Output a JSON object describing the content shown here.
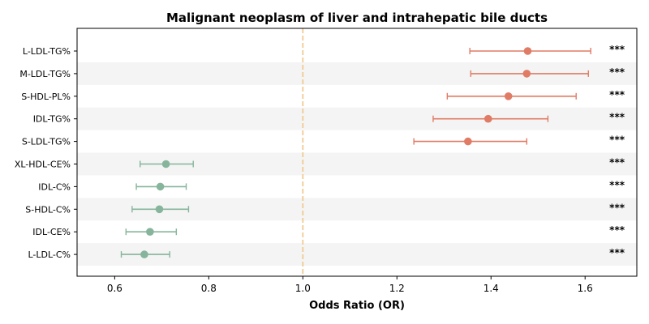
{
  "chart_data": {
    "type": "forest",
    "title": "Malignant neoplasm of liver and intrahepatic bile ducts",
    "xlabel": "Odds Ratio (OR)",
    "xlim": [
      0.52,
      1.71
    ],
    "xticks": [
      0.6,
      0.8,
      1.0,
      1.2,
      1.4,
      1.6
    ],
    "reference_line": 1.0,
    "colors": {
      "increased": "#e07b65",
      "decreased": "#86b59b",
      "reference": "#f0c585",
      "band": "#f4f4f4"
    },
    "rows": [
      {
        "label": "L-LDL-TG%",
        "or": 1.478,
        "lower": 1.355,
        "upper": 1.612,
        "sig": "***"
      },
      {
        "label": "M-LDL-TG%",
        "or": 1.476,
        "lower": 1.357,
        "upper": 1.607,
        "sig": "***"
      },
      {
        "label": "S-HDL-PL%",
        "or": 1.437,
        "lower": 1.307,
        "upper": 1.581,
        "sig": "***"
      },
      {
        "label": "IDL-TG%",
        "or": 1.394,
        "lower": 1.277,
        "upper": 1.521,
        "sig": "***"
      },
      {
        "label": "S-LDL-TG%",
        "or": 1.351,
        "lower": 1.236,
        "upper": 1.476,
        "sig": "***"
      },
      {
        "label": "XL-HDL-CE%",
        "or": 0.709,
        "lower": 0.654,
        "upper": 0.767,
        "sig": "***"
      },
      {
        "label": "IDL-C%",
        "or": 0.697,
        "lower": 0.646,
        "upper": 0.752,
        "sig": "***"
      },
      {
        "label": "S-HDL-C%",
        "or": 0.695,
        "lower": 0.637,
        "upper": 0.757,
        "sig": "***"
      },
      {
        "label": "IDL-CE%",
        "or": 0.675,
        "lower": 0.624,
        "upper": 0.731,
        "sig": "***"
      },
      {
        "label": "L-LDL-C%",
        "or": 0.663,
        "lower": 0.614,
        "upper": 0.717,
        "sig": "***"
      }
    ]
  }
}
